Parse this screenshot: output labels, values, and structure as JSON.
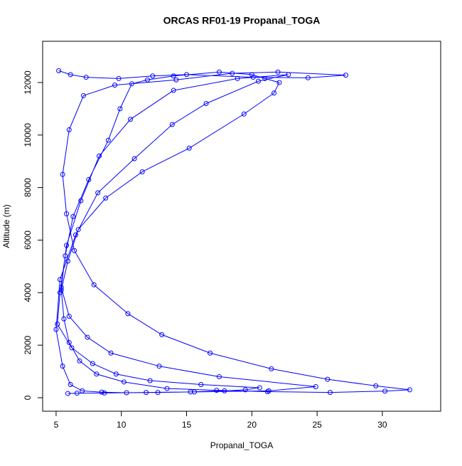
{
  "chart_data": {
    "type": "line",
    "title": "ORCAS RF01-19 Propanal_TOGA",
    "x_label": "Propanal_TOGA",
    "y_label": "Altitude (m)",
    "color": "#0000ff",
    "markers": true,
    "grid": false,
    "xlim": [
      3.97,
      34.47
    ],
    "ylim": [
      -515,
      13570
    ],
    "xticks": [
      5,
      10,
      15,
      20,
      25,
      30
    ],
    "yticks": [
      0,
      2000,
      4000,
      6000,
      8000,
      10000,
      12000
    ],
    "x": [
      5.2,
      6.1,
      7.3,
      9.8,
      12.4,
      15.0,
      20.1,
      24.3,
      27.2,
      22.0,
      18.5,
      14.2,
      9.5,
      7.1,
      6.0,
      5.5,
      5.8,
      6.4,
      7.9,
      10.5,
      13.1,
      16.8,
      21.5,
      25.8,
      29.5,
      32.1,
      30.2,
      26.0,
      21.2,
      17.3,
      13.5,
      10.2,
      8.1,
      6.8,
      6.0,
      5.6,
      5.4,
      5.9,
      6.7,
      8.8,
      11.6,
      15.2,
      19.4,
      21.7,
      22.1,
      21.0,
      20.0,
      17.5,
      14.0,
      12.0,
      10.8,
      9.9,
      9.0,
      7.5,
      6.3,
      5.7,
      5.3,
      5.1,
      6.2,
      7.8,
      9.6,
      12.2,
      16.1,
      20.6,
      19.5,
      17.9,
      15.3,
      12.8,
      10.4,
      8.5,
      7.0,
      6.1,
      5.5,
      5.0,
      5.3,
      6.5,
      8.2,
      11.0,
      13.9,
      16.5,
      20.5,
      22.8,
      18.9,
      14.0,
      10.7,
      8.3,
      6.9,
      5.8,
      5.4,
      6.0,
      7.4,
      9.2,
      12.9,
      17.5,
      24.9,
      21.3,
      15.6,
      11.9,
      8.7,
      6.6,
      5.9
    ],
    "values": [
      12450,
      12300,
      12200,
      12150,
      12250,
      12300,
      12200,
      12180,
      12280,
      12400,
      12350,
      12100,
      11900,
      11500,
      10200,
      8500,
      7000,
      5600,
      4300,
      3200,
      2400,
      1700,
      1100,
      700,
      450,
      300,
      250,
      200,
      230,
      280,
      350,
      600,
      900,
      1400,
      2100,
      3000,
      4100,
      5200,
      6400,
      7600,
      8600,
      9500,
      10800,
      11600,
      12000,
      12150,
      12300,
      12400,
      12250,
      12100,
      11950,
      11000,
      9800,
      8300,
      6900,
      5400,
      4000,
      2800,
      1900,
      1300,
      900,
      650,
      500,
      380,
      300,
      260,
      220,
      200,
      190,
      210,
      260,
      500,
      1200,
      2600,
      4500,
      6200,
      7800,
      9100,
      10400,
      11200,
      12050,
      12300,
      12150,
      11700,
      10600,
      9200,
      7500,
      5800,
      4200,
      3100,
      2300,
      1700,
      1200,
      800,
      420,
      260,
      220,
      200,
      180,
      170,
      160
    ]
  }
}
